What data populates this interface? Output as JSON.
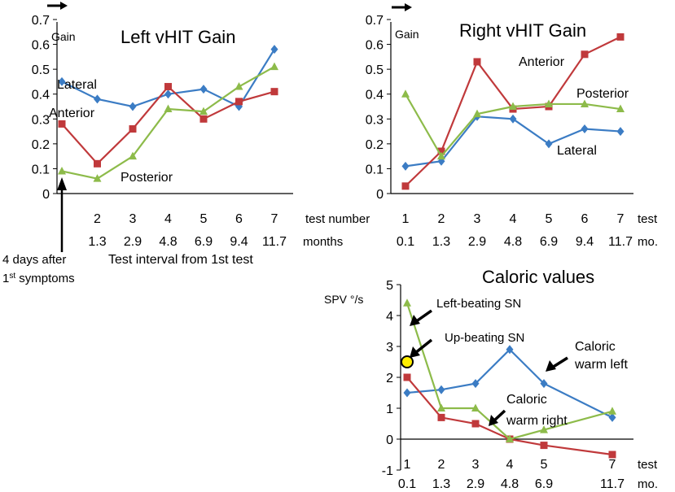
{
  "colors": {
    "lateral": "#3b7cc4",
    "anterior": "#c0393b",
    "posterior": "#8dbb4a",
    "marker_yellow": "#ffee00",
    "text": "#000000"
  },
  "chart_data": [
    {
      "id": "left",
      "type": "line",
      "title": "Left vHIT Gain",
      "ylabel": "Gain",
      "ylim": [
        0,
        0.7
      ],
      "yticks": [
        "0",
        "0.1",
        "0.2",
        "0.3",
        "0.4",
        "0.5",
        "0.6",
        "0.7"
      ],
      "x": [
        1,
        2,
        3,
        4,
        5,
        6,
        7
      ],
      "xticks": [
        "2",
        "3",
        "4",
        "5",
        "6",
        "7"
      ],
      "months": [
        "1.3",
        "2.9",
        "4.8",
        "6.9",
        "9.4",
        "11.7"
      ],
      "x_caption_test": "test number",
      "x_caption_months": "months",
      "xlabel": "Test interval from 1st test",
      "series": [
        {
          "name": "Lateral",
          "values": [
            0.45,
            0.38,
            0.35,
            0.4,
            0.42,
            0.35,
            0.58
          ]
        },
        {
          "name": "Anterior",
          "values": [
            0.28,
            0.12,
            0.26,
            0.43,
            0.3,
            0.37,
            0.41
          ]
        },
        {
          "name": "Posterior",
          "values": [
            0.09,
            0.06,
            0.15,
            0.34,
            0.33,
            0.43,
            0.51
          ]
        }
      ],
      "annotation": {
        "line1": "4 days after",
        "line2_superscript": "st",
        "line2_prefix": "1",
        "line2_suffix": " symptoms"
      }
    },
    {
      "id": "right",
      "type": "line",
      "title": "Right vHIT Gain",
      "ylabel": "Gain",
      "ylim": [
        0,
        0.7
      ],
      "yticks": [
        "0",
        "0.1",
        "0.2",
        "0.3",
        "0.4",
        "0.5",
        "0.6",
        "0.7"
      ],
      "x": [
        1,
        2,
        3,
        4,
        5,
        6,
        7
      ],
      "xticks": [
        "1",
        "2",
        "3",
        "4",
        "5",
        "6",
        "7"
      ],
      "months": [
        "0.1",
        "1.3",
        "2.9",
        "4.8",
        "6.9",
        "9.4",
        "11.7"
      ],
      "x_caption_test": "test",
      "x_caption_months": "mo.",
      "series": [
        {
          "name": "Lateral",
          "values": [
            0.11,
            0.13,
            0.31,
            0.3,
            0.2,
            0.26,
            0.25
          ]
        },
        {
          "name": "Anterior",
          "values": [
            0.03,
            0.17,
            0.53,
            0.34,
            0.35,
            0.56,
            0.63
          ]
        },
        {
          "name": "Posterior",
          "values": [
            0.4,
            0.15,
            0.32,
            0.35,
            0.36,
            0.36,
            0.34
          ]
        }
      ]
    },
    {
      "id": "caloric",
      "type": "line",
      "title": "Caloric values",
      "ylabel": "SPV °/s",
      "ylim": [
        -1,
        5
      ],
      "yticks": [
        "-1",
        "0",
        "1",
        "2",
        "3",
        "4",
        "5"
      ],
      "xticks": [
        "1",
        "2",
        "3",
        "4",
        "5",
        "7"
      ],
      "months": [
        "0.1",
        "1.3",
        "2.9",
        "4.8",
        "6.9",
        "11.7"
      ],
      "x_caption_test": "test",
      "x_caption_months": "mo.",
      "series": [
        {
          "name": "Caloric warm left",
          "x": [
            1,
            2,
            3,
            4,
            5,
            7
          ],
          "values": [
            1.5,
            1.6,
            1.8,
            2.9,
            1.8,
            0.7
          ]
        },
        {
          "name": "Caloric warm right",
          "x": [
            1,
            2,
            3,
            4,
            5,
            7
          ],
          "values": [
            2.0,
            0.7,
            0.5,
            0.0,
            -0.2,
            -0.5
          ]
        },
        {
          "name": "Left-beating SN",
          "x": [
            1,
            2,
            3,
            4,
            5,
            7
          ],
          "values": [
            4.4,
            1.0,
            1.0,
            0.0,
            0.3,
            0.9
          ]
        }
      ],
      "labels": {
        "left_beating": "Left-beating SN",
        "up_beating": "Up-beating SN",
        "warm_left_1": "Caloric",
        "warm_left_2": "warm left",
        "warm_right_1": "Caloric",
        "warm_right_2": "warm right"
      },
      "up_beating_point": {
        "x": 1,
        "value": 2.5
      }
    }
  ],
  "left_labels": {
    "lateral": "Lateral",
    "anterior": "Anterior",
    "posterior": "Posterior"
  },
  "right_labels": {
    "anterior": "Anterior",
    "posterior": "Posterior",
    "lateral": "Lateral"
  }
}
